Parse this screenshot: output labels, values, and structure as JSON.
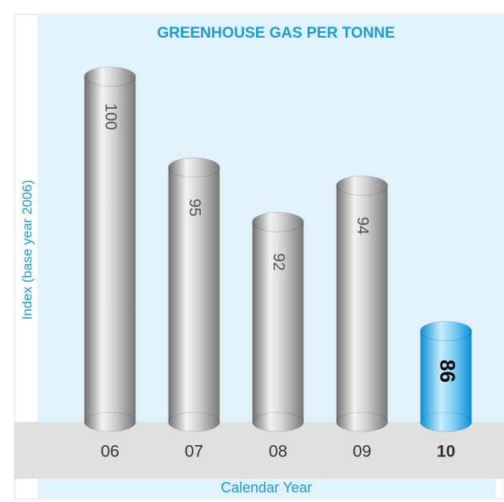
{
  "chart_data": {
    "type": "bar",
    "title": "GREENHOUSE GAS PER TONNE",
    "y_label": "Index (base year 2006)",
    "x_label": "Calendar Year",
    "categories": [
      "06",
      "07",
      "08",
      "09",
      "10"
    ],
    "values": [
      100,
      95,
      92,
      94,
      86
    ],
    "colors": [
      "#9a9a9a",
      "#9a9a9a",
      "#9a9a9a",
      "#9a9a9a",
      "#1aa3e8"
    ],
    "bold_categories": [
      false,
      false,
      false,
      false,
      true
    ],
    "ylim": [
      81,
      101
    ]
  }
}
